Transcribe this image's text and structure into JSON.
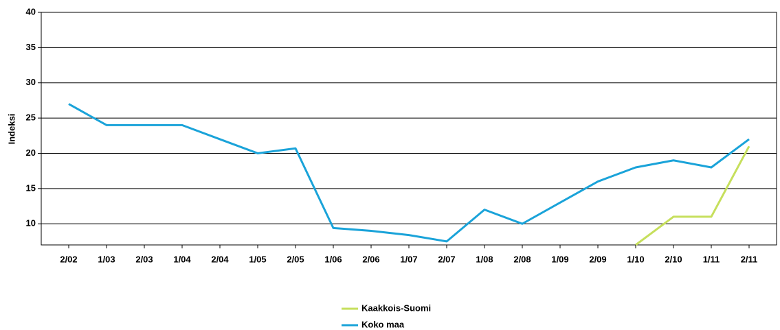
{
  "chart_data": {
    "type": "line",
    "y_label": "Indeksi",
    "categories": [
      "2/02",
      "1/03",
      "2/03",
      "1/04",
      "2/04",
      "1/05",
      "2/05",
      "1/06",
      "2/06",
      "1/07",
      "2/07",
      "1/08",
      "2/08",
      "1/09",
      "2/09",
      "1/10",
      "2/10",
      "1/11",
      "2/11"
    ],
    "series": [
      {
        "name": "Kaakkois-Suomi",
        "color": "#c6df5c",
        "values": [
          null,
          null,
          null,
          null,
          null,
          null,
          null,
          null,
          null,
          null,
          null,
          null,
          null,
          null,
          null,
          7,
          11,
          11,
          21
        ]
      },
      {
        "name": "Koko maa",
        "color": "#1aa3d9",
        "values": [
          27,
          24,
          24,
          24,
          22,
          20,
          20.7,
          9.4,
          9,
          8.4,
          7.5,
          12,
          10,
          13,
          16,
          18,
          19,
          18,
          22
        ]
      }
    ],
    "ylim": [
      7,
      40
    ],
    "yticks": [
      10,
      15,
      20,
      25,
      30,
      35,
      40
    ],
    "grid": true,
    "legend": "bottom"
  }
}
